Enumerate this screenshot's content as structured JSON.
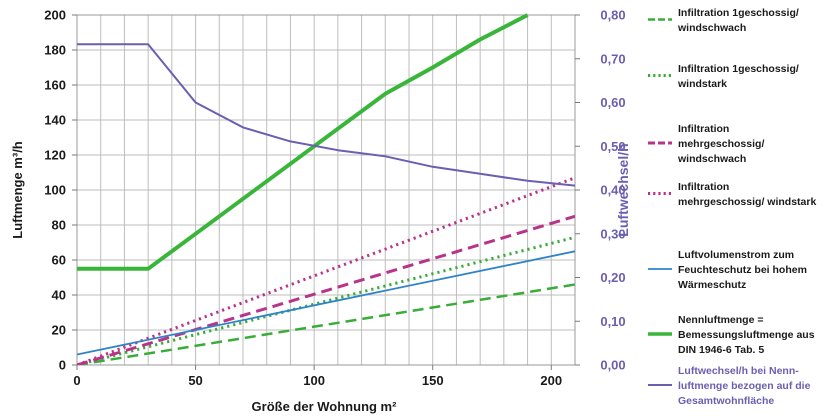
{
  "chart_data": {
    "type": "line",
    "x_label": "Größe der Wohnung m²",
    "y_label": "Luftmenge  m³/h",
    "y2_label": "Luftwechsel/h",
    "x_ticks": [
      "0",
      "50",
      "100",
      "150",
      "200"
    ],
    "y_ticks": [
      "0",
      "20",
      "40",
      "60",
      "80",
      "100",
      "120",
      "140",
      "160",
      "180",
      "200"
    ],
    "y2_ticks": [
      "0,00",
      "0,10",
      "0,20",
      "0,30",
      "0,40",
      "0,50",
      "0,60",
      "0,70",
      "0,80"
    ],
    "xlim": [
      0,
      210
    ],
    "ylim": [
      0,
      200
    ],
    "y2lim": [
      0,
      0.8
    ],
    "grid": true,
    "legend_position": "right",
    "series": [
      {
        "name": "Infiltration 1geschossig/ windschwach",
        "legend_lines": [
          "Infiltration 1geschossig/",
          "windschwach"
        ],
        "axis": "left",
        "color": "#39ad39",
        "style": "dashed",
        "width": 2.5,
        "points": [
          [
            0,
            0
          ],
          [
            210,
            46
          ]
        ]
      },
      {
        "name": "Infiltration 1geschossig/ windstark",
        "legend_lines": [
          "Infiltration 1geschossig/",
          "windstark"
        ],
        "axis": "left",
        "color": "#39ad39",
        "style": "dotted",
        "width": 3,
        "points": [
          [
            0,
            0
          ],
          [
            210,
            73
          ]
        ]
      },
      {
        "name": "Infiltration mehrgeschossig/ windschwach",
        "legend_lines": [
          "Infiltration",
          "mehrgeschossig/",
          "windschwach"
        ],
        "axis": "left",
        "color": "#b8338a",
        "style": "dashed",
        "width": 3,
        "points": [
          [
            0,
            0
          ],
          [
            210,
            85
          ]
        ]
      },
      {
        "name": "Infiltration mehrgeschossig/ windstark",
        "legend_lines": [
          "Infiltration",
          "mehrgeschossig/ windstark"
        ],
        "axis": "left",
        "color": "#b8338a",
        "style": "dotted",
        "width": 3,
        "points": [
          [
            0,
            0
          ],
          [
            210,
            107
          ]
        ]
      },
      {
        "name": "Luftvolumenstrom zum Feuchteschutz bei hohem Wärmeschutz",
        "legend_lines": [
          "Luftvolumenstrom zum",
          "Feuchteschutz bei hohem",
          "Wärmeschutz"
        ],
        "axis": "left",
        "color": "#2f83c8",
        "style": "solid",
        "width": 1.8,
        "points": [
          [
            0,
            6
          ],
          [
            210,
            65
          ]
        ]
      },
      {
        "name": "Nennluftmenge = Bemessungsluftmenge aus DIN 1946-6 Tab. 5",
        "legend_lines": [
          "Nennluftmenge =",
          "Bemessungsluftmenge aus",
          "DIN 1946-6 Tab. 5"
        ],
        "axis": "left",
        "color": "#39b539",
        "style": "solid",
        "width": 4,
        "points": [
          [
            0,
            55
          ],
          [
            30,
            55
          ],
          [
            50,
            75
          ],
          [
            70,
            95
          ],
          [
            90,
            115
          ],
          [
            110,
            135
          ],
          [
            130,
            155
          ],
          [
            150,
            170
          ],
          [
            170,
            186
          ],
          [
            190,
            200
          ]
        ]
      },
      {
        "name": "Luftwechsel/h bei Nenn-luftmenge bezogen auf die Gesamtwohnfläche",
        "legend_lines": [
          "Luftwechsel/h bei Nenn-",
          "luftmenge bezogen auf die",
          "Gesamtwohnfläche"
        ],
        "axis": "right",
        "color": "#6a5fb0",
        "style": "solid",
        "width": 2,
        "points": [
          [
            0,
            0.733
          ],
          [
            30,
            0.733
          ],
          [
            50,
            0.6
          ],
          [
            70,
            0.543
          ],
          [
            90,
            0.511
          ],
          [
            110,
            0.491
          ],
          [
            130,
            0.477
          ],
          [
            150,
            0.453
          ],
          [
            170,
            0.437
          ],
          [
            190,
            0.421
          ],
          [
            210,
            0.41
          ]
        ]
      }
    ]
  }
}
